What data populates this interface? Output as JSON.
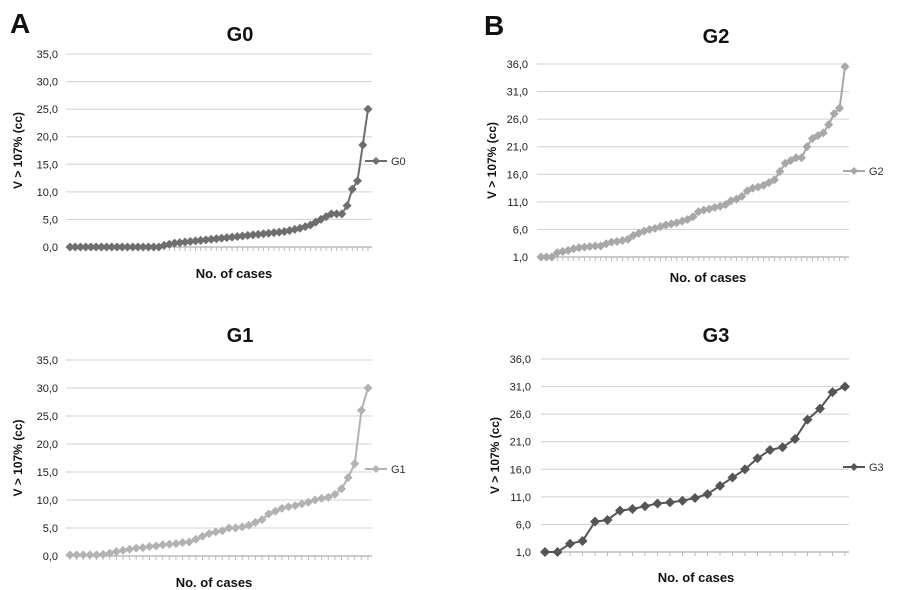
{
  "panels": {
    "left_letter": "A",
    "right_letter": "B"
  },
  "chart_data": [
    {
      "type": "line",
      "title": "G0",
      "xlabel": "No. of cases",
      "ylabel": "V > 107% (cc)",
      "ylim": [
        0,
        35
      ],
      "yticks": [
        "0,0",
        "5,0",
        "10,0",
        "15,0",
        "20,0",
        "25,0",
        "30,0",
        "35,0"
      ],
      "color": "#6e6e6e",
      "series": [
        {
          "name": "G0",
          "values": [
            0,
            0,
            0,
            0,
            0,
            0,
            0,
            0,
            0,
            0,
            0,
            0,
            0,
            0,
            0,
            0,
            0,
            0,
            0.3,
            0.5,
            0.7,
            0.8,
            0.9,
            1.0,
            1.1,
            1.2,
            1.3,
            1.4,
            1.5,
            1.6,
            1.7,
            1.8,
            1.9,
            2.0,
            2.1,
            2.2,
            2.3,
            2.4,
            2.5,
            2.6,
            2.7,
            2.8,
            3.0,
            3.2,
            3.4,
            3.7,
            4.0,
            4.5,
            5.0,
            5.5,
            6.0,
            6.0,
            6.0,
            7.5,
            10.5,
            12.0,
            18.5,
            25.0
          ]
        }
      ]
    },
    {
      "type": "line",
      "title": "G2",
      "xlabel": "No. of cases",
      "ylabel": "V > 107% (cc)",
      "ylim": [
        1,
        36
      ],
      "yticks": [
        "1,0",
        "6,0",
        "11,0",
        "16,0",
        "21,0",
        "26,0",
        "31,0",
        "36,0"
      ],
      "color": "#a8a8a8",
      "series": [
        {
          "name": "G2",
          "values": [
            1.0,
            1.0,
            1.0,
            1.8,
            2.0,
            2.2,
            2.5,
            2.7,
            2.8,
            2.9,
            3.0,
            3.0,
            3.4,
            3.7,
            3.8,
            4.0,
            4.2,
            4.9,
            5.3,
            5.7,
            6.0,
            6.2,
            6.5,
            6.8,
            7.0,
            7.2,
            7.5,
            7.8,
            8.3,
            9.2,
            9.5,
            9.7,
            10.0,
            10.2,
            10.5,
            11.2,
            11.5,
            12.0,
            13.0,
            13.5,
            13.7,
            14.0,
            14.5,
            15.0,
            16.5,
            18.0,
            18.5,
            19.0,
            19.0,
            21.0,
            22.5,
            23.0,
            23.5,
            25.0,
            27.0,
            28.0,
            35.5
          ]
        }
      ]
    },
    {
      "type": "line",
      "title": "G1",
      "xlabel": "No. of cases",
      "ylabel": "V > 107% (cc)",
      "ylim": [
        0,
        35
      ],
      "yticks": [
        "0,0",
        "5,0",
        "10,0",
        "15,0",
        "20,0",
        "25,0",
        "30,0",
        "35,0"
      ],
      "color": "#b2b2b2",
      "series": [
        {
          "name": "G1",
          "values": [
            0.2,
            0.2,
            0.2,
            0.2,
            0.2,
            0.3,
            0.5,
            0.8,
            1.0,
            1.2,
            1.4,
            1.5,
            1.7,
            1.8,
            2.0,
            2.1,
            2.2,
            2.4,
            2.5,
            3.0,
            3.5,
            4.0,
            4.3,
            4.5,
            5.0,
            5.0,
            5.2,
            5.5,
            6.0,
            6.5,
            7.5,
            8.0,
            8.5,
            8.8,
            9.0,
            9.3,
            9.6,
            10.0,
            10.3,
            10.5,
            11.0,
            12.0,
            14.0,
            16.5,
            26.0,
            30.0
          ]
        }
      ]
    },
    {
      "type": "line",
      "title": "G3",
      "xlabel": "No. of cases",
      "ylabel": "V > 107% (cc)",
      "ylim": [
        1,
        36
      ],
      "yticks": [
        "1,0",
        "6,0",
        "11,0",
        "16,0",
        "21,0",
        "26,0",
        "31,0",
        "36,0"
      ],
      "color": "#555555",
      "series": [
        {
          "name": "G3",
          "values": [
            1.0,
            1.0,
            2.5,
            3.0,
            6.5,
            6.8,
            8.5,
            8.8,
            9.3,
            9.8,
            10.0,
            10.3,
            10.8,
            11.5,
            13.0,
            14.5,
            16.0,
            18.0,
            19.5,
            20.0,
            21.5,
            25.0,
            27.0,
            30.0,
            31.0
          ]
        }
      ]
    }
  ]
}
